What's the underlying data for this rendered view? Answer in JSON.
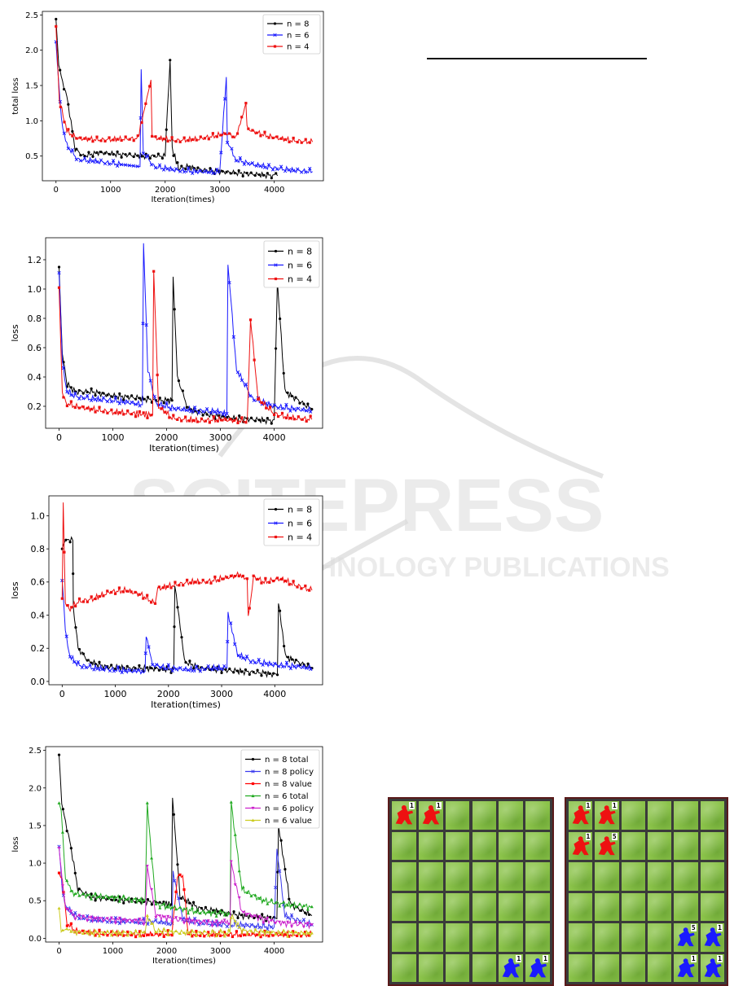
{
  "watermark": {
    "main": "SCITEPRESS",
    "sub": "SCIENCE AND TECHNOLOGY PUBLICATIONS"
  },
  "chart_data": [
    {
      "type": "line",
      "xlabel": "Iteration(times)",
      "ylabel": "total loss",
      "xticks": [
        0,
        1000,
        2000,
        3000,
        4000
      ],
      "yticks": [
        0.5,
        1.0,
        1.5,
        2.0,
        2.5
      ],
      "xlim": [
        -250,
        4900
      ],
      "ylim": [
        0.15,
        2.55
      ],
      "legend_position": "top-right",
      "series": [
        {
          "name": "n = 8",
          "color": "#000000",
          "x": [
            0,
            50,
            120,
            200,
            350,
            500,
            800,
            1200,
            1600,
            2000,
            2090,
            2130,
            2250,
            2400,
            2700,
            3000,
            3500,
            4000,
            4060
          ],
          "values": [
            2.44,
            1.8,
            1.55,
            1.35,
            0.6,
            0.5,
            0.55,
            0.52,
            0.5,
            0.5,
            1.86,
            0.6,
            0.32,
            0.35,
            0.3,
            0.28,
            0.25,
            0.22,
            0.22
          ]
        },
        {
          "name": "n = 6",
          "color": "#1a1aff",
          "x": [
            0,
            100,
            200,
            400,
            800,
            1200,
            1540,
            1560,
            1600,
            1800,
            2200,
            2600,
            3000,
            3120,
            3140,
            3300,
            3600,
            4000,
            4300,
            4700
          ],
          "values": [
            2.1,
            1.0,
            0.65,
            0.45,
            0.42,
            0.38,
            0.35,
            1.73,
            0.55,
            0.35,
            0.3,
            0.28,
            0.27,
            1.62,
            0.7,
            0.45,
            0.38,
            0.33,
            0.3,
            0.28
          ]
        },
        {
          "name": "n = 4",
          "color": "#ee1111",
          "x": [
            0,
            60,
            200,
            400,
            800,
            1200,
            1500,
            1740,
            1760,
            1800,
            2200,
            2600,
            3000,
            3150,
            3300,
            3480,
            3500,
            3600,
            3900,
            4300,
            4700
          ],
          "values": [
            2.32,
            1.3,
            0.85,
            0.75,
            0.73,
            0.74,
            0.75,
            1.58,
            0.78,
            0.76,
            0.72,
            0.74,
            0.8,
            0.82,
            0.75,
            1.25,
            0.9,
            0.85,
            0.78,
            0.72,
            0.7
          ]
        }
      ]
    },
    {
      "type": "line",
      "xlabel": "Iteration(times)",
      "ylabel": "loss",
      "xticks": [
        0,
        1000,
        2000,
        3000,
        4000
      ],
      "yticks": [
        0.2,
        0.4,
        0.6,
        0.8,
        1.0,
        1.2
      ],
      "xlim": [
        -250,
        4900
      ],
      "ylim": [
        0.05,
        1.35
      ],
      "legend_position": "top-right",
      "series": [
        {
          "name": "n = 8",
          "color": "#000000",
          "x": [
            0,
            60,
            150,
            300,
            600,
            1000,
            1400,
            1800,
            2100,
            2120,
            2200,
            2400,
            2800,
            3200,
            3600,
            4000,
            4060,
            4200,
            4700
          ],
          "values": [
            1.15,
            0.55,
            0.35,
            0.3,
            0.3,
            0.27,
            0.26,
            0.24,
            0.24,
            1.1,
            0.4,
            0.18,
            0.14,
            0.12,
            0.11,
            0.1,
            1.05,
            0.3,
            0.18
          ]
        },
        {
          "name": "n = 6",
          "color": "#1a1aff",
          "x": [
            0,
            60,
            150,
            300,
            600,
            1000,
            1400,
            1550,
            1570,
            1650,
            1800,
            2200,
            2600,
            3000,
            3120,
            3140,
            3300,
            3600,
            4000,
            4400,
            4700
          ],
          "values": [
            1.1,
            0.5,
            0.3,
            0.27,
            0.25,
            0.24,
            0.22,
            0.21,
            1.32,
            0.45,
            0.22,
            0.18,
            0.17,
            0.16,
            0.15,
            1.17,
            0.45,
            0.25,
            0.2,
            0.18,
            0.17
          ]
        },
        {
          "name": "n = 4",
          "color": "#ee1111",
          "x": [
            0,
            60,
            150,
            300,
            600,
            1000,
            1400,
            1740,
            1760,
            1850,
            2100,
            2600,
            3000,
            3400,
            3500,
            3560,
            3700,
            4000,
            4300,
            4700
          ],
          "values": [
            1.0,
            0.3,
            0.22,
            0.2,
            0.18,
            0.16,
            0.15,
            0.14,
            1.13,
            0.2,
            0.12,
            0.1,
            0.11,
            0.1,
            0.1,
            0.8,
            0.25,
            0.15,
            0.12,
            0.11
          ]
        }
      ]
    },
    {
      "type": "line",
      "xlabel": "Iteration(times)",
      "ylabel": "loss",
      "xticks": [
        0,
        1000,
        2000,
        3000,
        4000
      ],
      "yticks": [
        0.0,
        0.2,
        0.4,
        0.6,
        0.8,
        1.0
      ],
      "xlim": [
        -250,
        4900
      ],
      "ylim": [
        -0.02,
        1.12
      ],
      "legend_position": "top-right",
      "series": [
        {
          "name": "n = 8",
          "color": "#000000",
          "x": [
            0,
            40,
            100,
            200,
            210,
            300,
            500,
            800,
            1200,
            1600,
            2100,
            2120,
            2300,
            2600,
            3000,
            3400,
            3800,
            4050,
            4070,
            4200,
            4700
          ],
          "values": [
            0.8,
            0.84,
            0.86,
            0.85,
            0.45,
            0.2,
            0.12,
            0.09,
            0.08,
            0.08,
            0.07,
            0.59,
            0.12,
            0.08,
            0.07,
            0.06,
            0.05,
            0.04,
            0.47,
            0.15,
            0.08
          ]
        },
        {
          "name": "n = 6",
          "color": "#1a1aff",
          "x": [
            0,
            60,
            150,
            300,
            600,
            1000,
            1400,
            1560,
            1580,
            1700,
            2000,
            2400,
            2800,
            3100,
            3120,
            3300,
            3600,
            4000,
            4400,
            4700
          ],
          "values": [
            0.6,
            0.3,
            0.15,
            0.1,
            0.08,
            0.07,
            0.06,
            0.06,
            0.28,
            0.1,
            0.08,
            0.07,
            0.08,
            0.08,
            0.4,
            0.16,
            0.12,
            0.1,
            0.09,
            0.08
          ]
        },
        {
          "name": "n = 4",
          "color": "#ee1111",
          "x": [
            0,
            20,
            60,
            150,
            300,
            600,
            900,
            1200,
            1500,
            1750,
            1800,
            2100,
            2400,
            2700,
            3000,
            3300,
            3480,
            3500,
            3600,
            3800,
            4100,
            4400,
            4700
          ],
          "values": [
            0.5,
            1.08,
            0.48,
            0.44,
            0.48,
            0.5,
            0.54,
            0.55,
            0.52,
            0.47,
            0.56,
            0.58,
            0.6,
            0.6,
            0.62,
            0.64,
            0.62,
            0.38,
            0.63,
            0.6,
            0.62,
            0.58,
            0.55
          ]
        }
      ]
    },
    {
      "type": "line",
      "xlabel": "Iteration(times)",
      "ylabel": "loss",
      "xticks": [
        0,
        1000,
        2000,
        3000,
        4000
      ],
      "yticks": [
        0.0,
        0.5,
        1.0,
        1.5,
        2.0,
        2.5
      ],
      "xlim": [
        -250,
        4900
      ],
      "ylim": [
        -0.05,
        2.55
      ],
      "legend_position": "top-right",
      "series": [
        {
          "name": "n = 8 total",
          "color": "#000000",
          "x": [
            0,
            50,
            120,
            200,
            350,
            600,
            1000,
            1400,
            1800,
            2090,
            2110,
            2250,
            2600,
            3000,
            3400,
            3800,
            4050,
            4080,
            4300,
            4700
          ],
          "values": [
            2.44,
            1.8,
            1.55,
            1.3,
            0.65,
            0.55,
            0.52,
            0.5,
            0.48,
            0.45,
            1.86,
            0.55,
            0.4,
            0.35,
            0.3,
            0.28,
            0.26,
            1.5,
            0.45,
            0.3
          ]
        },
        {
          "name": "n = 8 policy",
          "color": "#3a3aee",
          "x": [
            0,
            60,
            150,
            300,
            600,
            1000,
            1400,
            1800,
            2100,
            2120,
            2300,
            2700,
            3100,
            3500,
            4000,
            4050,
            4200,
            4700
          ],
          "values": [
            1.2,
            0.6,
            0.4,
            0.3,
            0.25,
            0.23,
            0.22,
            0.22,
            0.2,
            0.9,
            0.25,
            0.2,
            0.18,
            0.17,
            0.15,
            1.2,
            0.3,
            0.18
          ]
        },
        {
          "name": "n = 8 value",
          "color": "#ff0000",
          "x": [
            0,
            60,
            150,
            300,
            600,
            1000,
            1400,
            1800,
            2100,
            2200,
            2300,
            2400,
            2600,
            3000,
            3400,
            3800,
            4200,
            4700
          ],
          "values": [
            0.85,
            0.8,
            0.2,
            0.1,
            0.07,
            0.06,
            0.05,
            0.05,
            0.06,
            0.82,
            0.84,
            0.06,
            0.05,
            0.05,
            0.05,
            0.05,
            0.05,
            0.05
          ]
        },
        {
          "name": "n = 6 total",
          "color": "#22aa22",
          "x": [
            0,
            40,
            120,
            250,
            500,
            900,
            1300,
            1600,
            1640,
            1800,
            2200,
            2600,
            3000,
            3180,
            3200,
            3400,
            3800,
            4200,
            4700
          ],
          "values": [
            1.8,
            1.7,
            0.8,
            0.6,
            0.57,
            0.55,
            0.52,
            0.5,
            1.77,
            0.45,
            0.4,
            0.35,
            0.33,
            0.32,
            1.8,
            0.65,
            0.5,
            0.45,
            0.42
          ]
        },
        {
          "name": "n = 6 policy",
          "color": "#cc22cc",
          "x": [
            0,
            40,
            120,
            250,
            500,
            900,
            1300,
            1600,
            1640,
            1800,
            2200,
            2600,
            3000,
            3180,
            3200,
            3400,
            3800,
            4200,
            4700
          ],
          "values": [
            1.2,
            0.9,
            0.4,
            0.3,
            0.27,
            0.25,
            0.24,
            0.23,
            0.95,
            0.3,
            0.25,
            0.22,
            0.2,
            0.2,
            1.0,
            0.35,
            0.25,
            0.2,
            0.18
          ]
        },
        {
          "name": "n = 6 value",
          "color": "#cccc22",
          "x": [
            0,
            40,
            120,
            300,
            700,
            1100,
            1600,
            1640,
            1800,
            2200,
            2700,
            3180,
            3200,
            3400,
            3800,
            4300,
            4700
          ],
          "values": [
            0.4,
            0.12,
            0.1,
            0.08,
            0.07,
            0.07,
            0.07,
            0.3,
            0.1,
            0.08,
            0.07,
            0.07,
            0.3,
            0.1,
            0.08,
            0.07,
            0.07
          ]
        }
      ]
    }
  ],
  "boards": [
    {
      "units": [
        {
          "team": "red",
          "row": 0,
          "col": 0,
          "digit": "1"
        },
        {
          "team": "red",
          "row": 0,
          "col": 1,
          "digit": "1"
        },
        {
          "team": "blue",
          "row": 5,
          "col": 4,
          "digit": "1"
        },
        {
          "team": "blue",
          "row": 5,
          "col": 5,
          "digit": "1"
        }
      ]
    },
    {
      "units": [
        {
          "team": "red",
          "row": 0,
          "col": 0,
          "digit": "1"
        },
        {
          "team": "red",
          "row": 0,
          "col": 1,
          "digit": "1"
        },
        {
          "team": "red",
          "row": 1,
          "col": 0,
          "digit": "1"
        },
        {
          "team": "red",
          "row": 1,
          "col": 1,
          "digit": "5"
        },
        {
          "team": "blue",
          "row": 4,
          "col": 4,
          "digit": "5"
        },
        {
          "team": "blue",
          "row": 4,
          "col": 5,
          "digit": "1"
        },
        {
          "team": "blue",
          "row": 5,
          "col": 4,
          "digit": "1"
        },
        {
          "team": "blue",
          "row": 5,
          "col": 5,
          "digit": "1"
        }
      ]
    }
  ],
  "colors": {
    "red_unit": "#ee1111",
    "blue_unit": "#1a1aff",
    "grass": "#8bc34a",
    "grid": "#3a3a3a"
  }
}
